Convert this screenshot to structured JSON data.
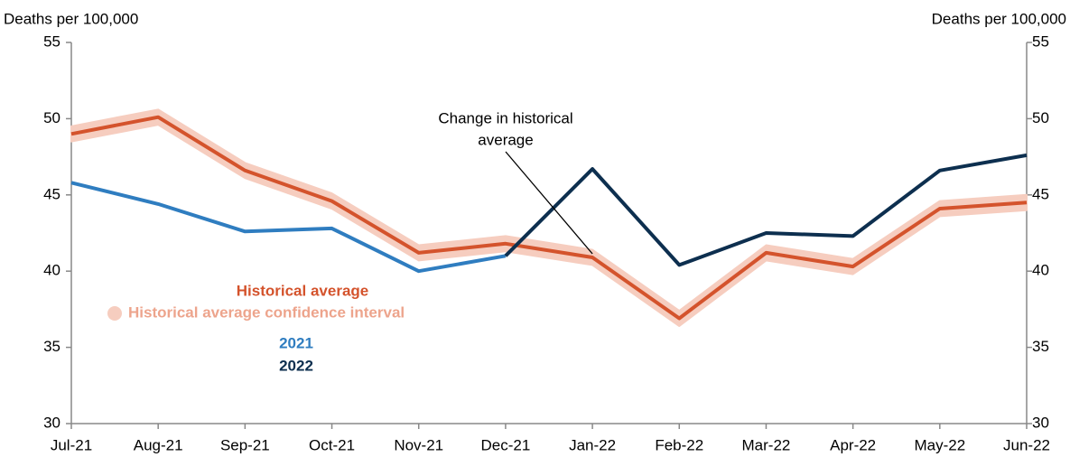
{
  "chart_data": {
    "type": "line",
    "y_label": "Deaths per 100,000",
    "y2_label": "Deaths per 100,000",
    "categories": [
      "Jul-21",
      "Aug-21",
      "Sep-21",
      "Oct-21",
      "Nov-21",
      "Dec-21",
      "Jan-22",
      "Feb-22",
      "Mar-22",
      "Apr-22",
      "May-22",
      "Jun-22"
    ],
    "series": [
      {
        "name": "Historical average confidence interval",
        "color": "#f6cdbf",
        "lower": [
          48.5,
          49.6,
          46.1,
          44.1,
          40.7,
          41.3,
          40.4,
          36.4,
          40.7,
          39.8,
          43.6,
          44.0
        ],
        "upper": [
          49.5,
          50.6,
          47.1,
          45.1,
          41.7,
          42.3,
          41.4,
          37.4,
          41.7,
          40.8,
          44.6,
          45.0
        ]
      },
      {
        "name": "Historical average",
        "color": "#d4532c",
        "values": [
          49.0,
          50.1,
          46.6,
          44.6,
          41.2,
          41.8,
          40.9,
          36.9,
          41.2,
          40.3,
          44.1,
          44.5
        ]
      },
      {
        "name": "2021",
        "color": "#2f7dc0",
        "values": [
          45.8,
          44.4,
          42.6,
          42.8,
          40.0,
          41.0,
          null,
          null,
          null,
          null,
          null,
          null
        ]
      },
      {
        "name": "2022",
        "color": "#0d2f4f",
        "values": [
          null,
          null,
          null,
          null,
          null,
          41.0,
          46.7,
          40.4,
          42.5,
          42.3,
          46.6,
          47.6
        ]
      }
    ],
    "annotation": {
      "lines": [
        "Change in historical",
        "average"
      ],
      "category_index": 6
    },
    "ylim": [
      30,
      55
    ],
    "yticks": [
      30,
      35,
      40,
      45,
      50,
      55
    ],
    "y2lim": [
      30,
      55
    ],
    "y2ticks": [
      30,
      35,
      40,
      45,
      50,
      55
    ]
  }
}
